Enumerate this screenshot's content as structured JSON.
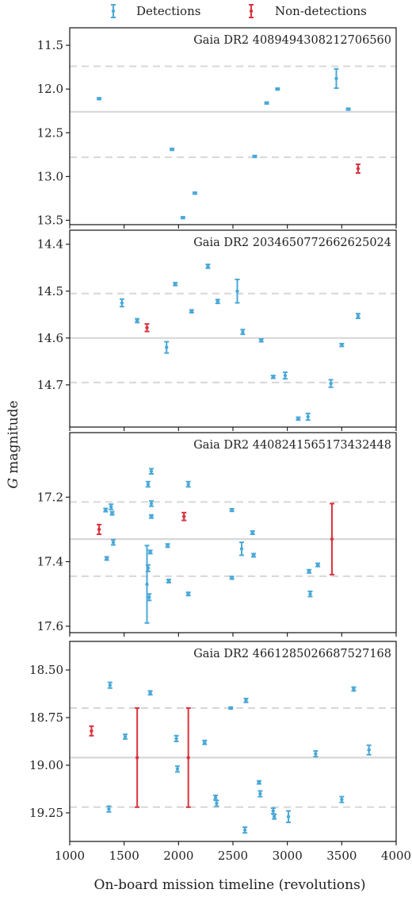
{
  "legend": {
    "detections": "Detections",
    "non_detections": "Non-detections",
    "detection_color": "#4aa8d8",
    "non_detection_color": "#d9333f"
  },
  "ylabel_italic": "G",
  "ylabel_rest": " magnitude",
  "xlabel": "On-board mission timeline (revolutions)",
  "chart_data": [
    {
      "type": "scatter",
      "title": "Gaia DR2 4089494308212706560",
      "xlim": [
        1000,
        4000
      ],
      "ylim": [
        11.3,
        13.55
      ],
      "y_inverted": true,
      "yticks": [
        11.5,
        12.0,
        12.5,
        13.0,
        13.5
      ],
      "ytick_labels": [
        "11.5",
        "12.0",
        "12.5",
        "13.0",
        "13.5"
      ],
      "mean_line": 12.26,
      "sigma_lines": [
        11.74,
        12.78
      ],
      "detections": [
        {
          "x": 1270,
          "y": 12.11,
          "err": 0.01
        },
        {
          "x": 1940,
          "y": 12.69,
          "err": 0.01
        },
        {
          "x": 2040,
          "y": 13.47,
          "err": 0.01
        },
        {
          "x": 2150,
          "y": 13.19,
          "err": 0.01
        },
        {
          "x": 2700,
          "y": 12.77,
          "err": 0.01
        },
        {
          "x": 2810,
          "y": 12.16,
          "err": 0.01
        },
        {
          "x": 2910,
          "y": 12.0,
          "err": 0.01
        },
        {
          "x": 3450,
          "y": 11.88,
          "err": 0.11
        },
        {
          "x": 3560,
          "y": 12.23,
          "err": 0.01
        }
      ],
      "non_detections": [
        {
          "x": 3650,
          "y": 12.91,
          "err": 0.05
        }
      ]
    },
    {
      "type": "scatter",
      "title": "Gaia DR2 2034650772662625024",
      "xlim": [
        1000,
        4000
      ],
      "ylim": [
        14.37,
        14.79
      ],
      "y_inverted": true,
      "yticks": [
        14.4,
        14.5,
        14.6,
        14.7
      ],
      "ytick_labels": [
        "14.4",
        "14.5",
        "14.6",
        "14.7"
      ],
      "mean_line": 14.6,
      "sigma_lines": [
        14.505,
        14.695
      ],
      "detections": [
        {
          "x": 1480,
          "y": 14.525,
          "err": 0.008
        },
        {
          "x": 1620,
          "y": 14.563,
          "err": 0.004
        },
        {
          "x": 1890,
          "y": 14.62,
          "err": 0.012
        },
        {
          "x": 1970,
          "y": 14.485,
          "err": 0.003
        },
        {
          "x": 2120,
          "y": 14.543,
          "err": 0.003
        },
        {
          "x": 2270,
          "y": 14.447,
          "err": 0.004
        },
        {
          "x": 2360,
          "y": 14.522,
          "err": 0.004
        },
        {
          "x": 2540,
          "y": 14.5,
          "err": 0.025
        },
        {
          "x": 2590,
          "y": 14.587,
          "err": 0.005
        },
        {
          "x": 2760,
          "y": 14.605,
          "err": 0.003
        },
        {
          "x": 2870,
          "y": 14.683,
          "err": 0.003
        },
        {
          "x": 2980,
          "y": 14.68,
          "err": 0.007
        },
        {
          "x": 3100,
          "y": 14.772,
          "err": 0.003
        },
        {
          "x": 3190,
          "y": 14.768,
          "err": 0.007
        },
        {
          "x": 3400,
          "y": 14.697,
          "err": 0.008
        },
        {
          "x": 3500,
          "y": 14.615,
          "err": 0.003
        },
        {
          "x": 3650,
          "y": 14.553,
          "err": 0.005
        }
      ],
      "non_detections": [
        {
          "x": 1710,
          "y": 14.578,
          "err": 0.008
        }
      ]
    },
    {
      "type": "scatter",
      "title": "Gaia DR2 4408241565173432448",
      "xlim": [
        1000,
        4000
      ],
      "ylim": [
        17.0,
        17.62
      ],
      "y_inverted": true,
      "yticks": [
        17.2,
        17.4,
        17.6
      ],
      "ytick_labels": [
        "17.2",
        "17.4",
        "17.6"
      ],
      "mean_line": 17.33,
      "sigma_lines": [
        17.215,
        17.445
      ],
      "detections": [
        {
          "x": 1330,
          "y": 17.24,
          "err": 0.005
        },
        {
          "x": 1340,
          "y": 17.39,
          "err": 0.005
        },
        {
          "x": 1380,
          "y": 17.23,
          "err": 0.008
        },
        {
          "x": 1390,
          "y": 17.25,
          "err": 0.005
        },
        {
          "x": 1400,
          "y": 17.34,
          "err": 0.008
        },
        {
          "x": 1710,
          "y": 17.47,
          "err": 0.12
        },
        {
          "x": 1720,
          "y": 17.42,
          "err": 0.01
        },
        {
          "x": 1720,
          "y": 17.16,
          "err": 0.008
        },
        {
          "x": 1730,
          "y": 17.51,
          "err": 0.01
        },
        {
          "x": 1740,
          "y": 17.37,
          "err": 0.005
        },
        {
          "x": 1750,
          "y": 17.12,
          "err": 0.008
        },
        {
          "x": 1750,
          "y": 17.22,
          "err": 0.008
        },
        {
          "x": 1750,
          "y": 17.26,
          "err": 0.005
        },
        {
          "x": 1900,
          "y": 17.35,
          "err": 0.005
        },
        {
          "x": 1910,
          "y": 17.46,
          "err": 0.005
        },
        {
          "x": 2090,
          "y": 17.16,
          "err": 0.008
        },
        {
          "x": 2090,
          "y": 17.5,
          "err": 0.005
        },
        {
          "x": 2490,
          "y": 17.24,
          "err": 0.004
        },
        {
          "x": 2490,
          "y": 17.45,
          "err": 0.004
        },
        {
          "x": 2580,
          "y": 17.36,
          "err": 0.02
        },
        {
          "x": 2680,
          "y": 17.31,
          "err": 0.005
        },
        {
          "x": 2690,
          "y": 17.38,
          "err": 0.005
        },
        {
          "x": 3200,
          "y": 17.43,
          "err": 0.005
        },
        {
          "x": 3210,
          "y": 17.5,
          "err": 0.008
        },
        {
          "x": 3280,
          "y": 17.41,
          "err": 0.005
        }
      ],
      "non_detections": [
        {
          "x": 1270,
          "y": 17.3,
          "err": 0.015
        },
        {
          "x": 2050,
          "y": 17.26,
          "err": 0.012
        },
        {
          "x": 3410,
          "y": 17.33,
          "err": 0.11
        }
      ]
    },
    {
      "type": "scatter",
      "title": "Gaia DR2 4661285026687527168",
      "xlim": [
        1000,
        4000
      ],
      "ylim": [
        18.35,
        19.4
      ],
      "y_inverted": true,
      "yticks": [
        18.5,
        18.75,
        19.0,
        19.25
      ],
      "ytick_labels": [
        "18.50",
        "18.75",
        "19.00",
        "19.25"
      ],
      "mean_line": 18.96,
      "sigma_lines": [
        18.7,
        19.22
      ],
      "detections": [
        {
          "x": 1360,
          "y": 19.23,
          "err": 0.015
        },
        {
          "x": 1370,
          "y": 18.58,
          "err": 0.015
        },
        {
          "x": 1510,
          "y": 18.85,
          "err": 0.012
        },
        {
          "x": 1740,
          "y": 18.62,
          "err": 0.01
        },
        {
          "x": 1980,
          "y": 18.86,
          "err": 0.015
        },
        {
          "x": 1990,
          "y": 19.02,
          "err": 0.015
        },
        {
          "x": 2240,
          "y": 18.88,
          "err": 0.01
        },
        {
          "x": 2340,
          "y": 19.17,
          "err": 0.012
        },
        {
          "x": 2350,
          "y": 19.2,
          "err": 0.015
        },
        {
          "x": 2480,
          "y": 18.7,
          "err": 0.005
        },
        {
          "x": 2610,
          "y": 19.34,
          "err": 0.015
        },
        {
          "x": 2620,
          "y": 18.66,
          "err": 0.01
        },
        {
          "x": 2740,
          "y": 19.09,
          "err": 0.008
        },
        {
          "x": 2750,
          "y": 19.15,
          "err": 0.015
        },
        {
          "x": 2870,
          "y": 19.24,
          "err": 0.015
        },
        {
          "x": 2880,
          "y": 19.27,
          "err": 0.012
        },
        {
          "x": 3010,
          "y": 19.27,
          "err": 0.03
        },
        {
          "x": 3260,
          "y": 18.94,
          "err": 0.015
        },
        {
          "x": 3500,
          "y": 19.18,
          "err": 0.015
        },
        {
          "x": 3610,
          "y": 18.6,
          "err": 0.01
        },
        {
          "x": 3750,
          "y": 18.92,
          "err": 0.025
        }
      ],
      "non_detections": [
        {
          "x": 1200,
          "y": 18.82,
          "err": 0.025
        },
        {
          "x": 1620,
          "y": 18.96,
          "err": 0.26
        },
        {
          "x": 2090,
          "y": 18.96,
          "err": 0.26
        }
      ]
    }
  ],
  "x_axis": {
    "ticks": [
      1000,
      1500,
      2000,
      2500,
      3000,
      3500,
      4000
    ],
    "tick_labels": [
      "1000",
      "1500",
      "2000",
      "2500",
      "3000",
      "3500",
      "4000"
    ]
  }
}
